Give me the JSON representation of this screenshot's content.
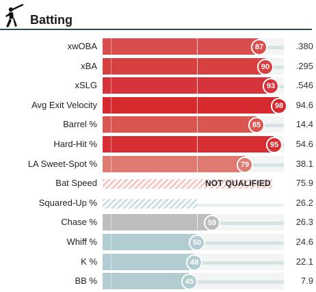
{
  "header": {
    "title": "Batting",
    "icon": "baseball-batter-icon"
  },
  "colors": {
    "dark_red": "#d72a2f",
    "red": "#d94e4c",
    "salmon": "#df7a70",
    "grey": "#bdbdbd",
    "blue_grey": "#b2cdd1",
    "track": "#f3f5f5",
    "tail": "#d5e3e4"
  },
  "rows": [
    {
      "label": "xwOBA",
      "percentile": "87",
      "value": ".380"
    },
    {
      "label": "xBA",
      "percentile": "90",
      "value": ".295"
    },
    {
      "label": "xSLG",
      "percentile": "93",
      "value": ".546"
    },
    {
      "label": "Avg Exit Velocity",
      "percentile": "98",
      "value": "94.6"
    },
    {
      "label": "Barrel %",
      "percentile": "85",
      "value": "14.4"
    },
    {
      "label": "Hard-Hit %",
      "percentile": "95",
      "value": "54.6"
    },
    {
      "label": "LA Sweet-Spot %",
      "percentile": "79",
      "value": "38.1"
    },
    {
      "label": "Bat Speed",
      "percentile": "",
      "value": "75.9",
      "note": "NOT QUALIFIED"
    },
    {
      "label": "Squared-Up %",
      "percentile": "",
      "value": "26.2"
    },
    {
      "label": "Chase %",
      "percentile": "59",
      "value": "26.3"
    },
    {
      "label": "Whiff %",
      "percentile": "50",
      "value": "24.6"
    },
    {
      "label": "K %",
      "percentile": "48",
      "value": "22.1"
    },
    {
      "label": "BB %",
      "percentile": "45",
      "value": "7.9"
    }
  ]
}
